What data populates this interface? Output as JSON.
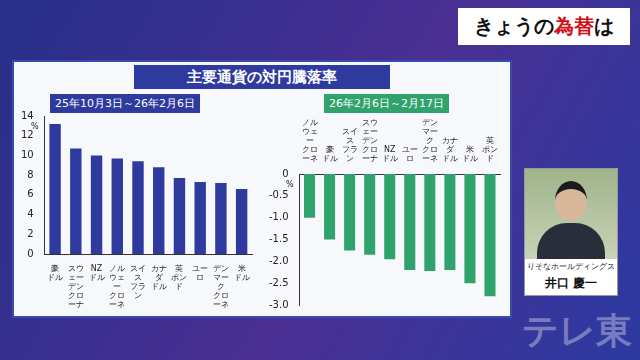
{
  "header": {
    "text": "きょうの為替は",
    "highlight": "為替"
  },
  "panel_title": "主要通貨の対円騰落率",
  "person": {
    "affiliation": "りそなホールディングス",
    "name": "井口 慶一"
  },
  "watermark": "テレ東",
  "chart_data": [
    {
      "type": "bar",
      "title": "25年10月3日～26年2月6日",
      "categories": [
        "豪\nドル",
        "スウェーデン\nクローナ",
        "NZ\nドル",
        "ノルウェー\nクローネ",
        "スイス\nフラン",
        "カナダ\nドル",
        "英\nポンド",
        "ユーロ",
        "デンマーク\nクローネ",
        "米\nドル"
      ],
      "values": [
        13.2,
        10.7,
        10.0,
        9.7,
        9.4,
        8.8,
        7.7,
        7.3,
        7.2,
        6.6
      ],
      "color": "#2e3a9e",
      "ylim": [
        0,
        14
      ],
      "yticks": [
        0,
        2,
        4,
        6,
        8,
        10,
        12,
        14
      ],
      "y_label": "%",
      "grid": false
    },
    {
      "type": "bar",
      "title": "26年2月6日～2月17日",
      "categories": [
        "ノルウェー\nクローネ",
        "豪\nドル",
        "スイス\nフラン",
        "スウェーデン\nクローナ",
        "NZ\nドル",
        "ユーロ",
        "デンマーク\nクローネ",
        "カナダ\nドル",
        "米\nドル",
        "英\nポンド"
      ],
      "values": [
        -1.0,
        -1.5,
        -1.75,
        -1.85,
        -1.95,
        -2.2,
        -2.22,
        -2.2,
        -2.5,
        -2.8
      ],
      "color": "#2fa36b",
      "ylim": [
        -3.0,
        0
      ],
      "yticks": [
        0,
        -0.5,
        {
          "value": -1.0,
          "label": "-1.0"
        },
        -1.5,
        {
          "value": -2.0,
          "label": "-2.0"
        },
        -2.5,
        {
          "value": -3.0,
          "label": "-3.0"
        }
      ],
      "y_label": "%",
      "grid": false
    }
  ]
}
